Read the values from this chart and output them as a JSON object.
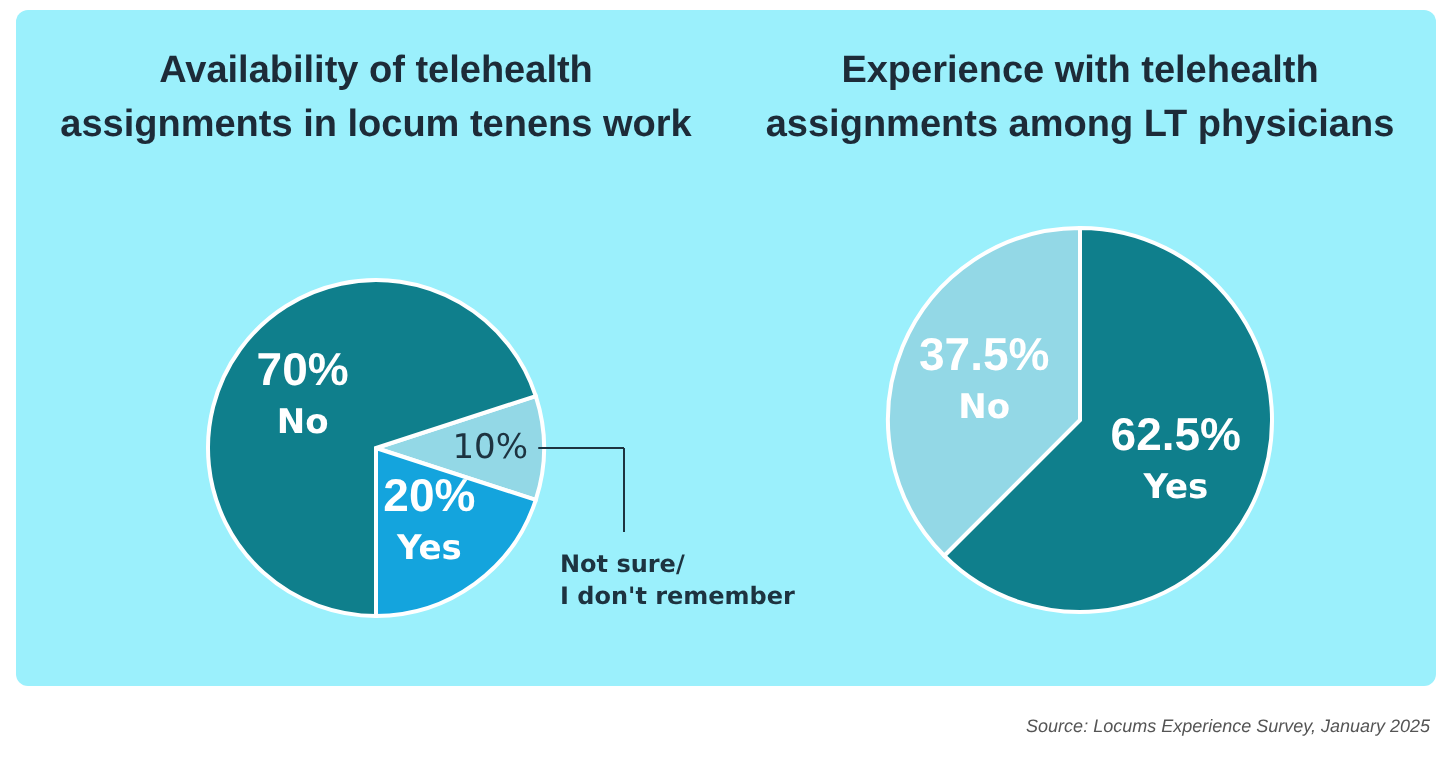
{
  "chart_data": [
    {
      "type": "pie",
      "title": [
        "Availability of telehealth",
        "assignments in locum tenens work"
      ],
      "categories": [
        "Not sure/\nI don't remember",
        "Yes",
        "No"
      ],
      "values": [
        10,
        20,
        70
      ],
      "value_labels": [
        "10%",
        "20%",
        "70%"
      ],
      "colors": [
        "#93d8e6",
        "#14a4dd",
        "#0f7f8c"
      ],
      "legend": false
    },
    {
      "type": "pie",
      "title": [
        "Experience with telehealth",
        "assignments among LT physicians"
      ],
      "categories": [
        "Yes",
        "No"
      ],
      "values": [
        62.5,
        37.5
      ],
      "value_labels": [
        "62.5%",
        "37.5%"
      ],
      "colors": [
        "#0f7f8c",
        "#93d8e6"
      ],
      "legend": false,
      "annotations": [
        "Source: Locums Experience Survey, January 2025"
      ]
    }
  ]
}
